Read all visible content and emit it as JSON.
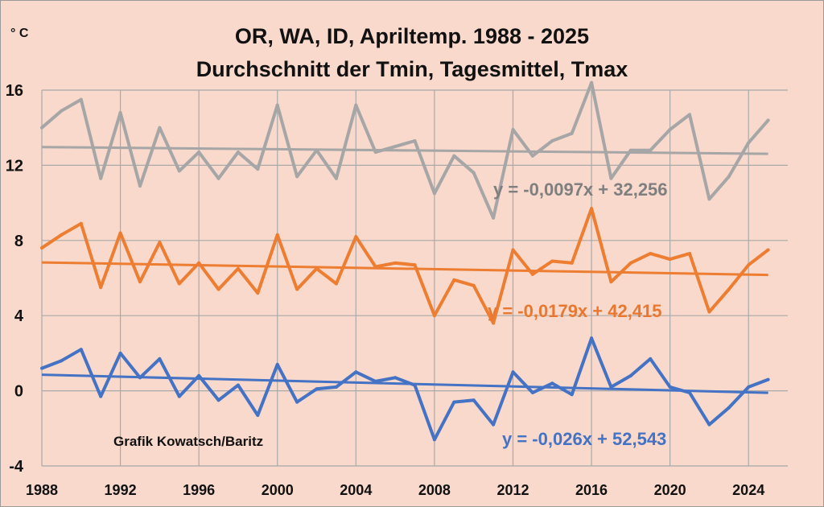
{
  "unit": "° C",
  "title": "OR, WA, ID, Apriltemp.  1988 - 2025",
  "subtitle": "Durchschnitt der Tmin, Tagesmittel, Tmax",
  "credit": "Grafik Kowatsch/Baritz",
  "colors": {
    "background": "#f8d9cc",
    "tmax": "#a6a6a6",
    "mean": "#ed7d31",
    "tmin": "#4472c4",
    "grid": "#a9a9a9"
  },
  "chart_data": {
    "type": "line",
    "x": [
      1988,
      1989,
      1990,
      1991,
      1992,
      1993,
      1994,
      1995,
      1996,
      1997,
      1998,
      1999,
      2000,
      2001,
      2002,
      2003,
      2004,
      2005,
      2006,
      2007,
      2008,
      2009,
      2010,
      2011,
      2012,
      2013,
      2014,
      2015,
      2016,
      2017,
      2018,
      2019,
      2020,
      2021,
      2022,
      2023,
      2024,
      2025
    ],
    "xlim": [
      1988,
      2026
    ],
    "xticks": [
      1988,
      1992,
      1996,
      2000,
      2004,
      2008,
      2012,
      2016,
      2020,
      2024
    ],
    "ylim": [
      -4,
      16
    ],
    "yticks": [
      -4,
      0,
      4,
      8,
      12,
      16
    ],
    "grid": true,
    "series": [
      {
        "key": "tmax",
        "values": [
          14.0,
          14.9,
          15.5,
          11.3,
          14.8,
          10.9,
          14.0,
          11.7,
          12.7,
          11.3,
          12.7,
          11.8,
          15.2,
          11.4,
          12.8,
          11.3,
          15.2,
          12.7,
          13.0,
          13.3,
          10.5,
          12.5,
          11.6,
          9.2,
          13.9,
          12.5,
          13.3,
          13.7,
          16.4,
          11.3,
          12.8,
          12.8,
          13.9,
          14.7,
          10.2,
          11.4,
          13.2,
          14.4
        ],
        "trend": {
          "slope": -0.0097,
          "intercept": 32.256,
          "label": "y = -0,0097x + 32,256"
        }
      },
      {
        "key": "mean",
        "values": [
          7.6,
          8.3,
          8.9,
          5.5,
          8.4,
          5.8,
          7.9,
          5.7,
          6.8,
          5.4,
          6.5,
          5.2,
          8.3,
          5.4,
          6.5,
          5.7,
          8.2,
          6.6,
          6.8,
          6.7,
          4.0,
          5.9,
          5.6,
          3.6,
          7.5,
          6.2,
          6.9,
          6.8,
          9.7,
          5.8,
          6.8,
          7.3,
          7.0,
          7.3,
          4.2,
          5.4,
          6.7,
          7.5
        ],
        "trend": {
          "slope": -0.0179,
          "intercept": 42.415,
          "label": "y = -0,0179x + 42,415"
        }
      },
      {
        "key": "tmin",
        "values": [
          1.2,
          1.6,
          2.2,
          -0.3,
          2.0,
          0.7,
          1.7,
          -0.3,
          0.8,
          -0.5,
          0.3,
          -1.3,
          1.4,
          -0.6,
          0.1,
          0.2,
          1.0,
          0.5,
          0.7,
          0.3,
          -2.6,
          -0.6,
          -0.5,
          -1.8,
          1.0,
          -0.1,
          0.4,
          -0.2,
          2.8,
          0.2,
          0.8,
          1.7,
          0.2,
          -0.1,
          -1.8,
          -0.9,
          0.2,
          0.6
        ],
        "trend": {
          "slope": -0.026,
          "intercept": 52.543,
          "label": "y = -0,026x + 52,543"
        }
      }
    ]
  }
}
